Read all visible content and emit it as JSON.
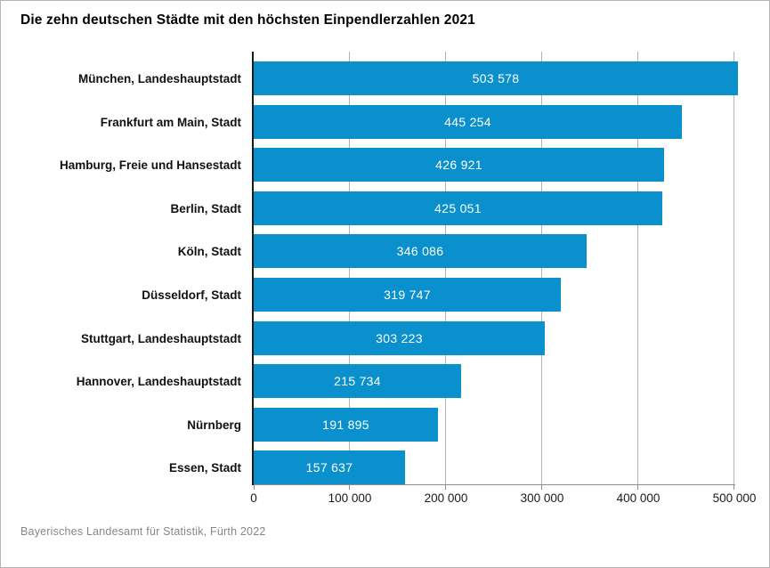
{
  "title": "Die zehn deutschen Städte mit den höchsten Einpendlerzahlen 2021",
  "source": "Bayerisches Landesamt für Statistik, Fürth 2022",
  "colors": {
    "bar": "#0a90cc",
    "grid": "#b3b3b3",
    "axis": "#8f8f8f",
    "y_axis": "#1a1a1a",
    "value_text": "#ffffff",
    "category_text": "#111111",
    "source_text": "#878787",
    "frame_border": "#b5b5b5",
    "background": "#ffffff"
  },
  "chart_data": {
    "type": "bar",
    "orientation": "horizontal",
    "title": "Die zehn deutschen Städte mit den höchsten Einpendlerzahlen 2021",
    "categories": [
      "München, Landeshauptstadt",
      "Frankfurt am Main, Stadt",
      "Hamburg, Freie und Hansestadt",
      "Berlin, Stadt",
      "Köln, Stadt",
      "Düsseldorf, Stadt",
      "Stuttgart, Landeshauptstadt",
      "Hannover, Landeshauptstadt",
      "Nürnberg",
      "Essen, Stadt"
    ],
    "values": [
      503578,
      445254,
      426921,
      425051,
      346086,
      319747,
      303223,
      215734,
      191895,
      157637
    ],
    "value_labels": [
      "503 578",
      "445 254",
      "426 921",
      "425 051",
      "346 086",
      "319 747",
      "303 223",
      "215 734",
      "191 895",
      "157 637"
    ],
    "xlabel": "",
    "ylabel": "",
    "xlim": [
      0,
      500000
    ],
    "xticks": [
      0,
      100000,
      200000,
      300000,
      400000,
      500000
    ],
    "xtick_labels": [
      "0",
      "100 000",
      "200 000",
      "300 000",
      "400 000",
      "500 000"
    ],
    "grid": true,
    "legend": false,
    "value_labels_position": "inside-center"
  }
}
